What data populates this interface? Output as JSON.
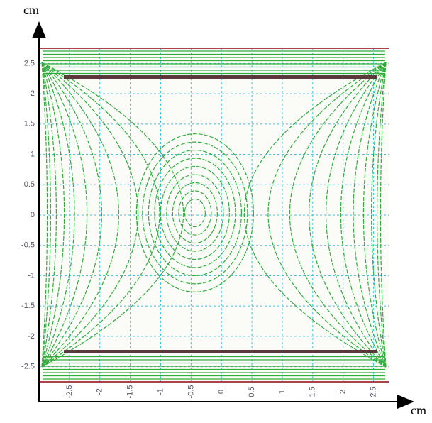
{
  "chart_data": {
    "type": "contour",
    "x_label": "cm",
    "y_label": "cm",
    "xlim": [
      -3,
      2.75
    ],
    "ylim": [
      -2.75,
      2.75
    ],
    "xticks": [
      -2.5,
      -2,
      -1.5,
      -1,
      -0.5,
      0,
      0.5,
      1,
      1.5,
      2,
      2.5
    ],
    "yticks": [
      -2.5,
      -2,
      -1.5,
      -1,
      -0.5,
      0,
      0.5,
      1,
      1.5,
      2,
      2.5
    ],
    "grid": true,
    "grid_color": "#33c6e8",
    "color": "#2fae3c"
  }
}
